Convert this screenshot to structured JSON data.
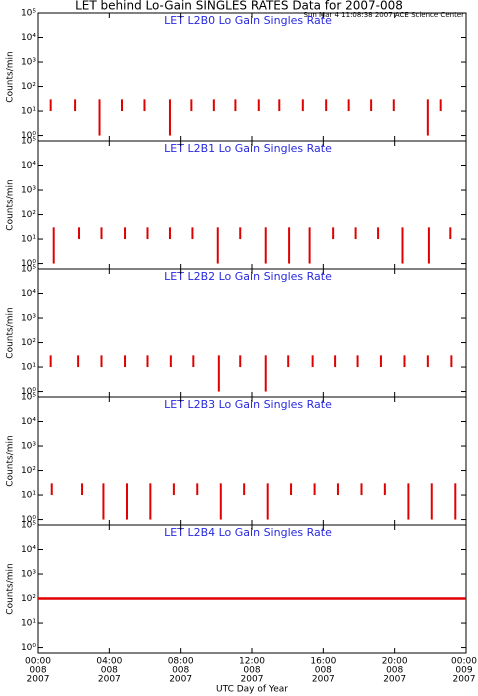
{
  "title": "LET behind Lo-Gain SINGLES RATES Data for 2007-008",
  "timestamp": "Sun Mar  4 11:08:38 2007 ACE Science Center",
  "xlabel": "UTC Day of Year",
  "xlim": [
    0,
    24
  ],
  "xticks": [
    {
      "value": 0,
      "label": "00:00"
    },
    {
      "value": 4,
      "label": "04:00"
    },
    {
      "value": 8,
      "label": "08:00"
    },
    {
      "value": 12,
      "label": "12:00"
    },
    {
      "value": 16,
      "label": "16:00"
    },
    {
      "value": 20,
      "label": "20:00"
    },
    {
      "value": 24,
      "label": "00:00"
    }
  ],
  "xtick_days": [
    "008",
    "008",
    "008",
    "008",
    "008",
    "008",
    "009"
  ],
  "xtick_years": [
    "2007",
    "2007",
    "2007",
    "2007",
    "2007",
    "2007",
    "2007"
  ],
  "chart_data": [
    {
      "type": "spikes",
      "title": "LET L2B0 Lo Gain Singles Rate",
      "ylabel": "Counts/min",
      "log": true,
      "color": "#e00000",
      "ylim": [
        0.6,
        100000
      ],
      "yticks": [
        {
          "value": 1,
          "label": "10⁰"
        },
        {
          "value": 10,
          "label": "10¹"
        },
        {
          "value": 100,
          "label": "10²"
        },
        {
          "value": 1000,
          "label": "10³"
        },
        {
          "value": 10000,
          "label": "10⁴"
        },
        {
          "value": 100000,
          "label": "10⁵"
        }
      ],
      "x": [
        0.71,
        2.08,
        3.45,
        4.71,
        5.97,
        7.4,
        8.6,
        9.86,
        11.07,
        12.38,
        13.53,
        14.85,
        16.16,
        17.42,
        18.68,
        19.95,
        21.86,
        22.58
      ],
      "lows": [
        10,
        10,
        1,
        10,
        10,
        1,
        10,
        10,
        10,
        10,
        10,
        10,
        10,
        10,
        10,
        10,
        1,
        10
      ],
      "values": [
        30,
        30,
        30,
        30,
        30,
        30,
        30,
        30,
        30,
        30,
        30,
        30,
        30,
        30,
        30,
        30,
        30,
        30
      ]
    },
    {
      "type": "spikes",
      "title": "LET L2B1 Lo Gain Singles Rate",
      "ylabel": "Counts/min",
      "log": true,
      "color": "#e00000",
      "ylim": [
        0.6,
        100000
      ],
      "yticks": [
        {
          "value": 1,
          "label": "10⁰"
        },
        {
          "value": 10,
          "label": "10¹"
        },
        {
          "value": 100,
          "label": "10²"
        },
        {
          "value": 1000,
          "label": "10³"
        },
        {
          "value": 10000,
          "label": "10⁴"
        },
        {
          "value": 100000,
          "label": "10⁵"
        }
      ],
      "x": [
        0.88,
        2.3,
        3.56,
        4.88,
        6.14,
        7.4,
        8.66,
        10.08,
        11.34,
        12.77,
        14.08,
        15.23,
        16.55,
        17.81,
        19.07,
        20.44,
        21.92,
        23.12
      ],
      "lows": [
        1,
        10,
        10,
        10,
        10,
        10,
        10,
        1,
        10,
        1,
        1,
        1,
        10,
        10,
        10,
        1,
        1,
        10
      ],
      "values": [
        30,
        30,
        30,
        30,
        30,
        30,
        30,
        30,
        30,
        30,
        30,
        30,
        30,
        30,
        30,
        30,
        30,
        30
      ]
    },
    {
      "type": "spikes",
      "title": "LET L2B2 Lo Gain Singles Rate",
      "ylabel": "Counts/min",
      "log": true,
      "color": "#e00000",
      "ylim": [
        0.6,
        100000
      ],
      "yticks": [
        {
          "value": 1,
          "label": "10⁰"
        },
        {
          "value": 10,
          "label": "10¹"
        },
        {
          "value": 100,
          "label": "10²"
        },
        {
          "value": 1000,
          "label": "10³"
        },
        {
          "value": 10000,
          "label": "10⁴"
        },
        {
          "value": 100000,
          "label": "10⁵"
        }
      ],
      "x": [
        0.71,
        2.25,
        3.56,
        4.88,
        6.14,
        7.45,
        8.71,
        10.14,
        11.34,
        12.77,
        14.03,
        15.4,
        16.66,
        17.92,
        19.23,
        20.55,
        21.86,
        23.18
      ],
      "lows": [
        10,
        10,
        10,
        10,
        10,
        10,
        10,
        1,
        10,
        1,
        10,
        10,
        10,
        10,
        10,
        10,
        10,
        10
      ],
      "values": [
        30,
        30,
        30,
        30,
        30,
        30,
        30,
        30,
        30,
        30,
        30,
        30,
        30,
        30,
        30,
        30,
        30,
        30
      ]
    },
    {
      "type": "spikes",
      "title": "LET L2B3 Lo Gain Singles Rate",
      "ylabel": "Counts/min",
      "log": true,
      "color": "#e00000",
      "ylim": [
        0.6,
        100000
      ],
      "yticks": [
        {
          "value": 1,
          "label": "10⁰"
        },
        {
          "value": 10,
          "label": "10¹"
        },
        {
          "value": 100,
          "label": "10²"
        },
        {
          "value": 1000,
          "label": "10³"
        },
        {
          "value": 10000,
          "label": "10⁴"
        },
        {
          "value": 100000,
          "label": "10⁵"
        }
      ],
      "x": [
        0.77,
        2.47,
        3.67,
        4.99,
        6.3,
        7.62,
        8.93,
        10.25,
        11.56,
        12.88,
        14.19,
        15.51,
        16.82,
        18.14,
        19.45,
        20.77,
        22.08,
        23.4
      ],
      "lows": [
        10,
        10,
        1,
        1,
        1,
        10,
        10,
        1,
        10,
        1,
        10,
        10,
        10,
        10,
        10,
        1,
        1,
        1
      ],
      "values": [
        30,
        30,
        30,
        30,
        30,
        30,
        30,
        30,
        30,
        30,
        30,
        30,
        30,
        30,
        30,
        30,
        30,
        30
      ]
    },
    {
      "type": "line",
      "title": "LET L2B4 Lo Gain Singles Rate",
      "ylabel": "Counts/min",
      "log": true,
      "color": "#e00000",
      "ylim": [
        0.6,
        100000
      ],
      "yticks": [
        {
          "value": 1,
          "label": "10⁰"
        },
        {
          "value": 10,
          "label": "10¹"
        },
        {
          "value": 100,
          "label": "10²"
        },
        {
          "value": 1000,
          "label": "10³"
        },
        {
          "value": 10000,
          "label": "10⁴"
        },
        {
          "value": 100000,
          "label": "10⁵"
        }
      ],
      "x": [
        0,
        24
      ],
      "values": [
        100,
        100
      ]
    }
  ]
}
